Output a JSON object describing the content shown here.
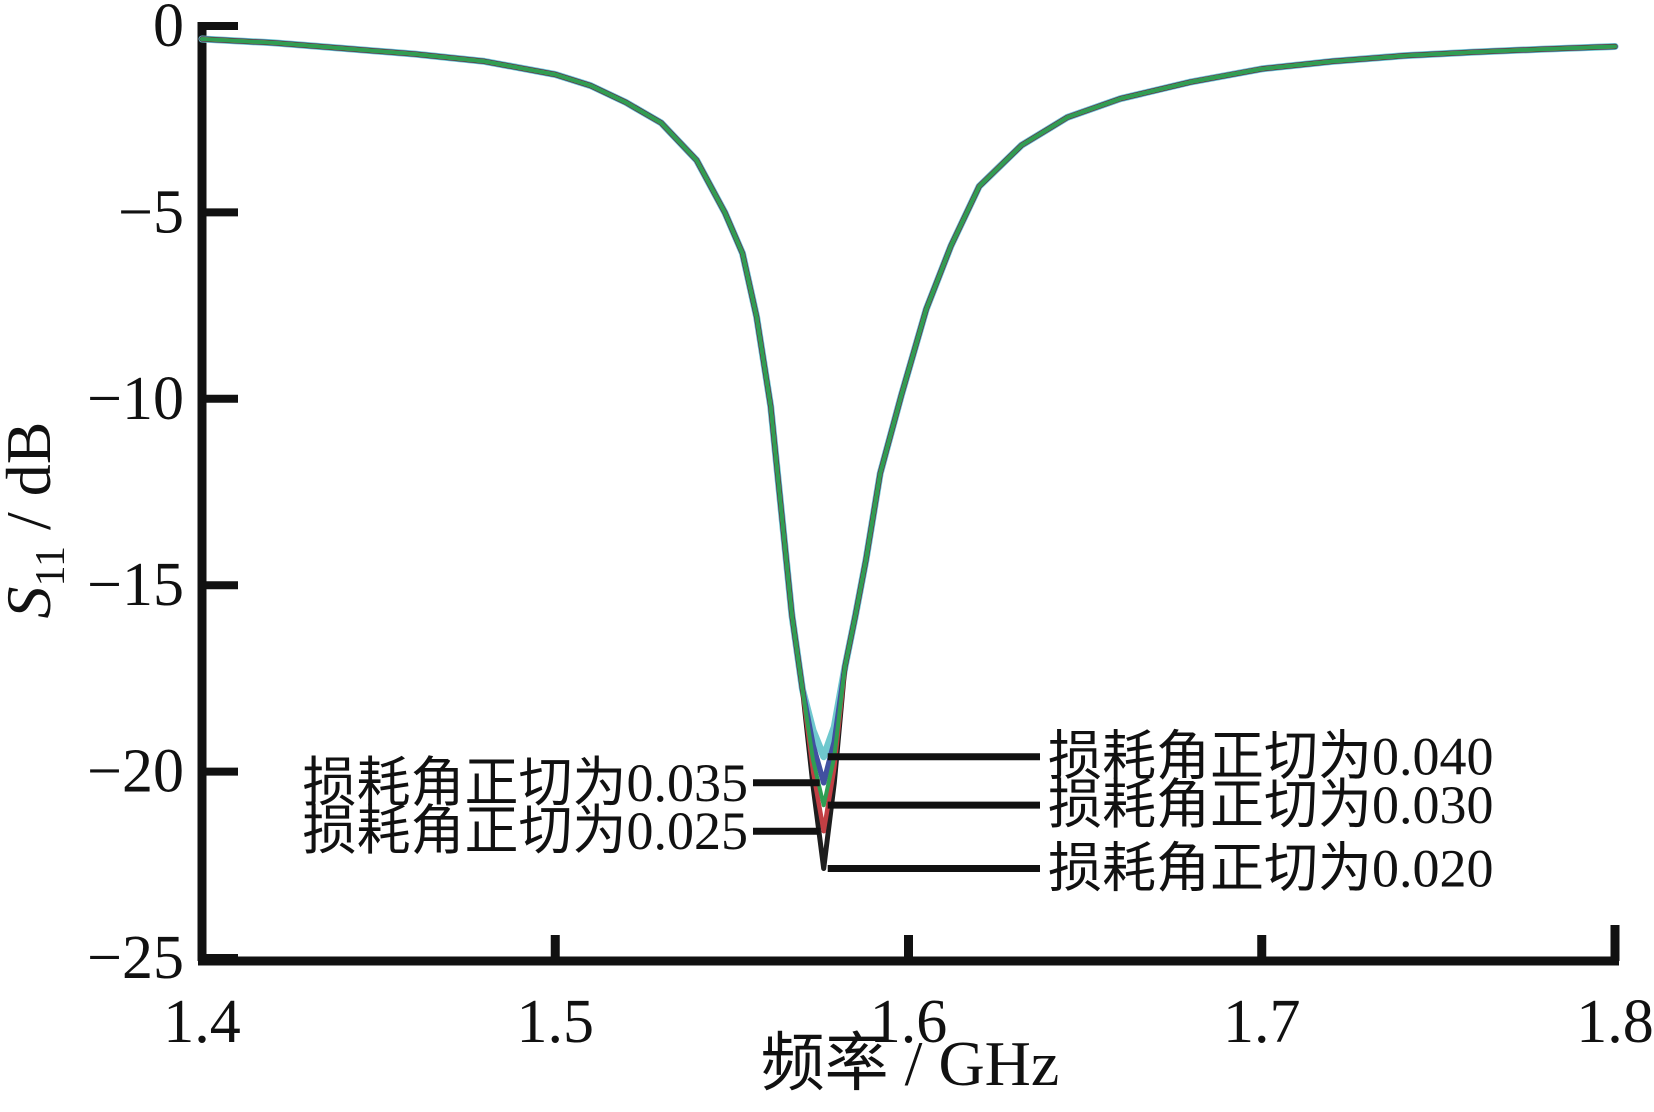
{
  "figure": {
    "background": "#ffffff",
    "text_color": "#111111"
  },
  "chart_data": {
    "type": "line",
    "title": "",
    "xlabel": "频率 / GHz",
    "ylabel": {
      "symbol": "S",
      "subscript": "11",
      "unit": " / dB"
    },
    "xlim": [
      1.4,
      1.8
    ],
    "ylim": [
      -25,
      0
    ],
    "grid": false,
    "legend_position": "inline-annotations",
    "x_ticks": [
      1.4,
      1.5,
      1.6,
      1.7,
      1.8
    ],
    "x_tick_labels": [
      "1.4",
      "1.5",
      "1.6",
      "1.7",
      "1.8"
    ],
    "y_ticks": [
      0,
      -5,
      -10,
      -15,
      -20,
      -25
    ],
    "y_tick_labels": [
      "0",
      "−5",
      "−10",
      "−15",
      "−20",
      "−25"
    ],
    "resonant_frequency_ghz": 1.576,
    "x": [
      1.4,
      1.42,
      1.44,
      1.46,
      1.48,
      1.5,
      1.51,
      1.52,
      1.53,
      1.54,
      1.548,
      1.553,
      1.557,
      1.561,
      1.564,
      1.567,
      1.57,
      1.573,
      1.576,
      1.579,
      1.582,
      1.585,
      1.588,
      1.592,
      1.598,
      1.605,
      1.612,
      1.62,
      1.632,
      1.645,
      1.66,
      1.68,
      1.7,
      1.72,
      1.74,
      1.76,
      1.78,
      1.8
    ],
    "series": [
      {
        "name": "损耗角正切为0.040",
        "tan_delta": "0.040",
        "min_db": -19.6,
        "color": "#6fc8ce",
        "width": 7,
        "values": [
          -0.35,
          -0.45,
          -0.6,
          -0.75,
          -0.95,
          -1.3,
          -1.6,
          -2.05,
          -2.6,
          -3.6,
          -5.0,
          -6.1,
          -7.8,
          -10.2,
          -13.0,
          -15.8,
          -17.8,
          -18.9,
          -19.6,
          -18.8,
          -17.2,
          -15.8,
          -14.3,
          -12.0,
          -9.9,
          -7.6,
          -5.9,
          -4.3,
          -3.2,
          -2.45,
          -1.95,
          -1.5,
          -1.15,
          -0.95,
          -0.8,
          -0.7,
          -0.62,
          -0.55
        ]
      },
      {
        "name": "损耗角正切为0.035",
        "tan_delta": "0.035",
        "min_db": -20.3,
        "color": "#4150a0",
        "width": 5.5,
        "values": [
          -0.35,
          -0.45,
          -0.6,
          -0.75,
          -0.95,
          -1.3,
          -1.6,
          -2.05,
          -2.6,
          -3.6,
          -5.0,
          -6.1,
          -7.8,
          -10.2,
          -13.0,
          -15.8,
          -17.8,
          -19.3,
          -20.3,
          -19.2,
          -17.2,
          -15.8,
          -14.3,
          -12.0,
          -9.9,
          -7.6,
          -5.9,
          -4.3,
          -3.2,
          -2.45,
          -1.95,
          -1.5,
          -1.15,
          -0.95,
          -0.8,
          -0.7,
          -0.62,
          -0.55
        ]
      },
      {
        "name": "损耗角正切为0.020",
        "tan_delta": "0.020",
        "min_db": -22.6,
        "color": "#1e1e1e",
        "width": 5,
        "values": [
          -0.35,
          -0.45,
          -0.6,
          -0.75,
          -0.95,
          -1.3,
          -1.6,
          -2.05,
          -2.6,
          -3.6,
          -5.0,
          -6.1,
          -7.8,
          -10.2,
          -13.0,
          -15.8,
          -17.8,
          -20.4,
          -22.6,
          -20.3,
          -17.2,
          -15.8,
          -14.3,
          -12.0,
          -9.9,
          -7.6,
          -5.9,
          -4.3,
          -3.2,
          -2.45,
          -1.95,
          -1.5,
          -1.15,
          -0.95,
          -0.8,
          -0.7,
          -0.62,
          -0.55
        ]
      },
      {
        "name": "损耗角正切为0.025",
        "tan_delta": "0.025",
        "min_db": -21.6,
        "color": "#c23f44",
        "width": 4.5,
        "values": [
          -0.35,
          -0.45,
          -0.6,
          -0.75,
          -0.95,
          -1.3,
          -1.6,
          -2.05,
          -2.6,
          -3.6,
          -5.0,
          -6.1,
          -7.8,
          -10.2,
          -13.0,
          -15.8,
          -17.8,
          -20.0,
          -21.6,
          -19.9,
          -17.2,
          -15.8,
          -14.3,
          -12.0,
          -9.9,
          -7.6,
          -5.9,
          -4.3,
          -3.2,
          -2.45,
          -1.95,
          -1.5,
          -1.15,
          -0.95,
          -0.8,
          -0.7,
          -0.62,
          -0.55
        ]
      },
      {
        "name": "损耗角正切为0.030",
        "tan_delta": "0.030",
        "min_db": -20.9,
        "color": "#2f9e53",
        "width": 4,
        "values": [
          -0.35,
          -0.45,
          -0.6,
          -0.75,
          -0.95,
          -1.3,
          -1.6,
          -2.05,
          -2.6,
          -3.6,
          -5.0,
          -6.1,
          -7.8,
          -10.2,
          -13.0,
          -15.8,
          -17.8,
          -19.7,
          -20.9,
          -19.6,
          -17.2,
          -15.8,
          -14.3,
          -12.0,
          -9.9,
          -7.6,
          -5.9,
          -4.3,
          -3.2,
          -2.45,
          -1.95,
          -1.5,
          -1.15,
          -0.95,
          -0.8,
          -0.7,
          -0.62,
          -0.55
        ]
      }
    ],
    "annotations": [
      {
        "text": "损耗角正切为0.035",
        "side": "left",
        "row": 1,
        "line_db": -20.3
      },
      {
        "text": "损耗角正切为0.025",
        "side": "left",
        "row": 2,
        "line_db": -21.6
      },
      {
        "text": "损耗角正切为0.040",
        "side": "right",
        "row": 1,
        "line_db": -19.6
      },
      {
        "text": "损耗角正切为0.030",
        "side": "right",
        "row": 2,
        "line_db": -20.9
      },
      {
        "text": "损耗角正切为0.020",
        "side": "right",
        "row": 3,
        "line_db": -22.6
      }
    ]
  }
}
